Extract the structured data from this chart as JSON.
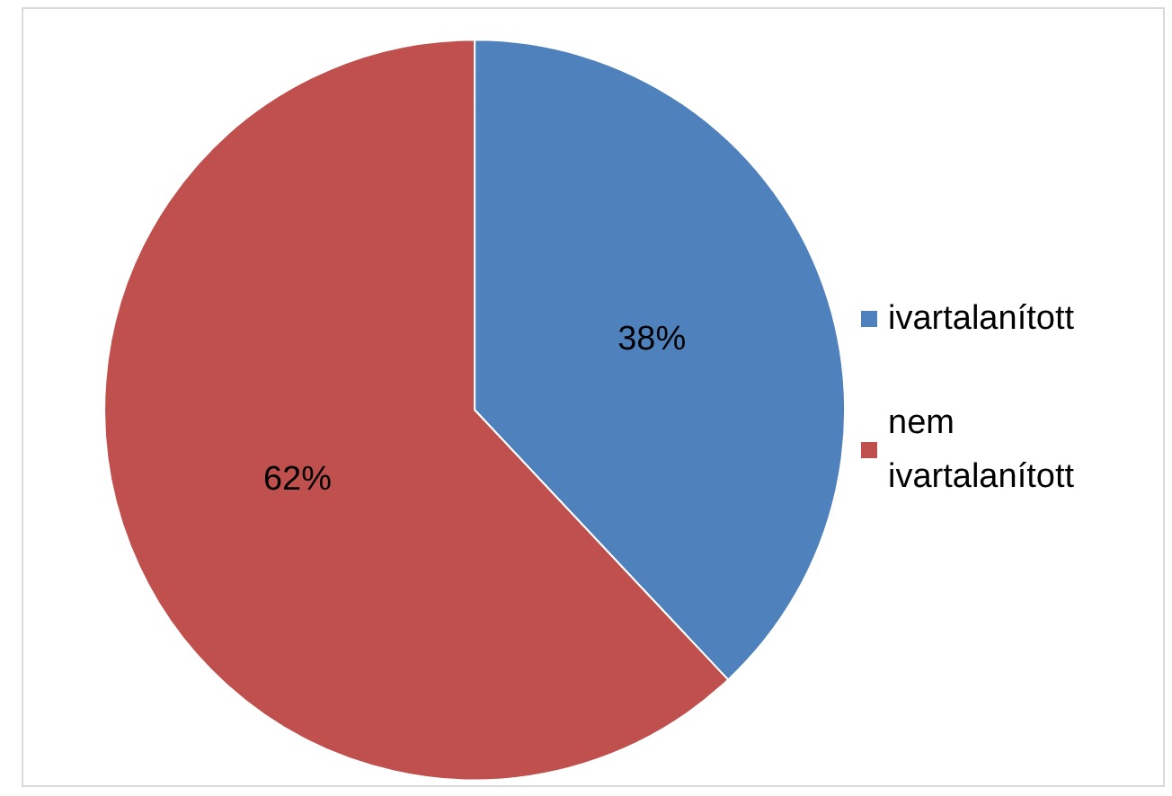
{
  "chart_data": {
    "type": "pie",
    "categories": [
      "ivartalanított",
      "nem ivartalanított"
    ],
    "values": [
      38,
      62
    ],
    "colors": [
      "#4f81bd",
      "#c0504d"
    ],
    "value_labels": [
      "38%",
      "62%"
    ],
    "legend": "right"
  }
}
